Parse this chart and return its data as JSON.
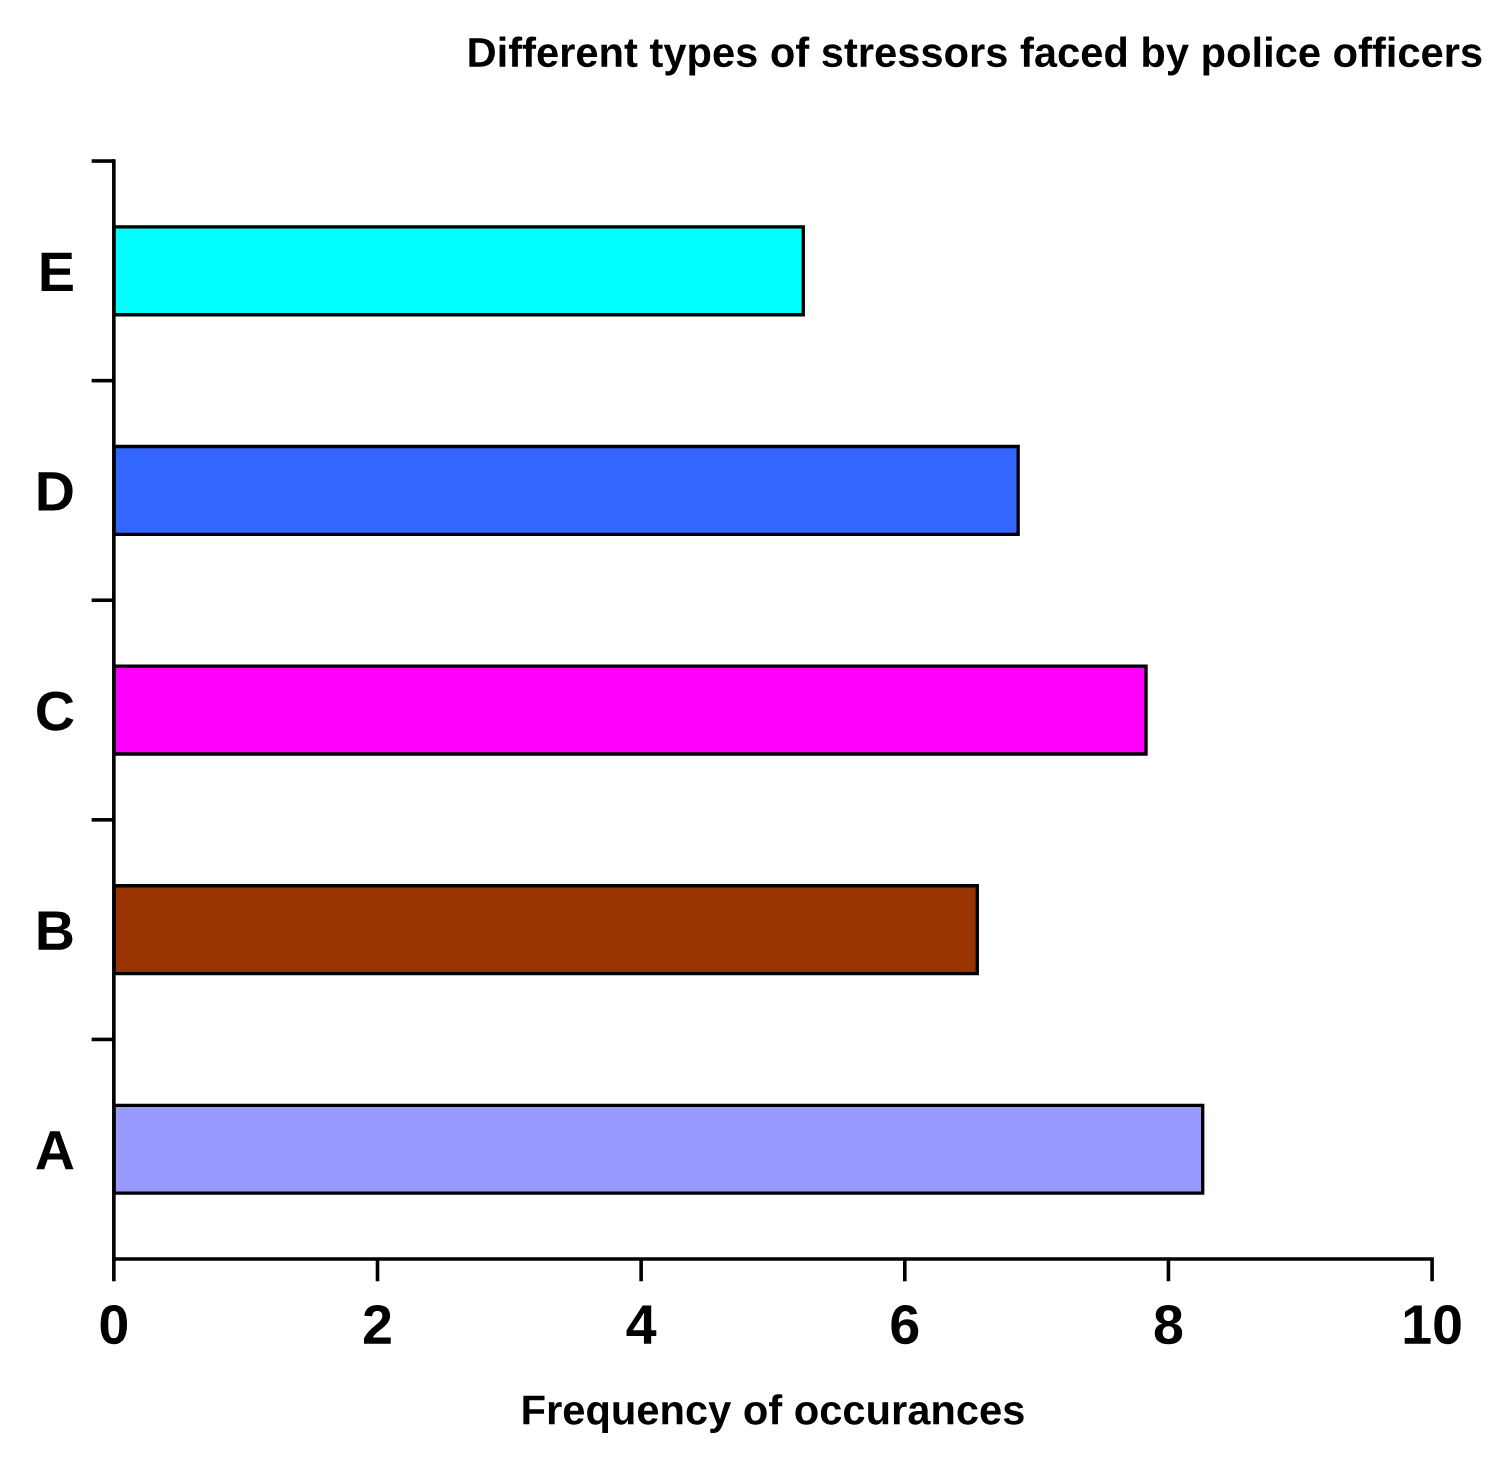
{
  "chart_data": {
    "type": "bar",
    "orientation": "horizontal",
    "title": "Different types of stressors faced by police officers",
    "xlabel": "Frequency of occurances",
    "categories": [
      "E",
      "D",
      "C",
      "B",
      "A"
    ],
    "values": [
      5.23,
      6.86,
      7.83,
      6.55,
      8.26
    ],
    "colors": [
      "#00ffff",
      "#3366ff",
      "#ff00ff",
      "#993300",
      "#9999ff"
    ],
    "xlim": [
      0,
      10
    ],
    "xticks": [
      0,
      2,
      4,
      6,
      8,
      10
    ],
    "grid": false,
    "legend": false
  }
}
